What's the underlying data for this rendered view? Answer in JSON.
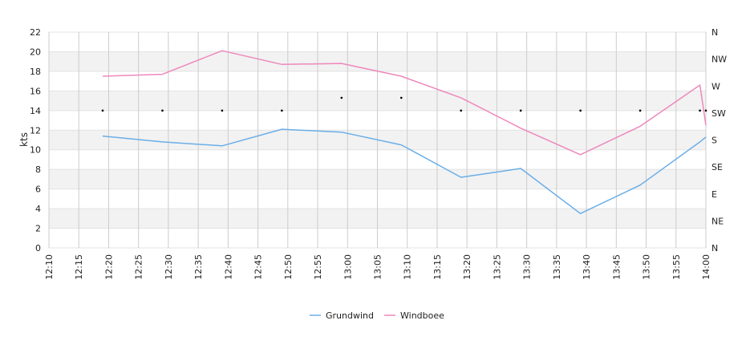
{
  "chart_data": {
    "type": "line",
    "ylabel": "kts",
    "ylim": [
      0,
      22
    ],
    "yticks": [
      "0",
      "2",
      "4",
      "6",
      "8",
      "10",
      "12",
      "14",
      "16",
      "18",
      "20",
      "22"
    ],
    "y2ticks": [
      "N",
      "NE",
      "E",
      "SE",
      "S",
      "SW",
      "W",
      "NW",
      "N"
    ],
    "xticks": [
      "12:10",
      "12:15",
      "12:20",
      "12:25",
      "12:30",
      "12:35",
      "12:40",
      "12:45",
      "12:50",
      "12:55",
      "13:00",
      "13:05",
      "13:10",
      "13:15",
      "13:20",
      "13:25",
      "13:30",
      "13:35",
      "13:40",
      "13:45",
      "13:50",
      "13:55",
      "14:00"
    ],
    "x": [
      "12:19",
      "12:29",
      "12:39",
      "12:49",
      "12:59",
      "13:09",
      "13:19",
      "13:29",
      "13:39",
      "13:49",
      "13:59",
      "14:00"
    ],
    "series": [
      {
        "name": "Grundwind",
        "color": "#6aaee8",
        "values": [
          11.4,
          10.8,
          10.4,
          12.1,
          11.8,
          10.5,
          7.2,
          8.1,
          3.5,
          6.4,
          10.8,
          11.3
        ]
      },
      {
        "name": "Windboee",
        "color": "#ee88bb",
        "values": [
          17.5,
          17.7,
          20.1,
          18.7,
          18.8,
          17.5,
          15.3,
          12.2,
          9.5,
          12.4,
          16.6,
          12.5
        ]
      }
    ],
    "direction_markers": {
      "x": [
        "12:19",
        "12:29",
        "12:39",
        "12:49",
        "12:59",
        "13:09",
        "13:19",
        "13:29",
        "13:39",
        "13:49",
        "13:59",
        "14:00"
      ],
      "y": [
        14,
        14,
        14,
        14,
        15.3,
        15.3,
        14,
        14,
        14,
        14,
        14,
        14
      ]
    },
    "grid": true,
    "legend": "bottom-center"
  }
}
